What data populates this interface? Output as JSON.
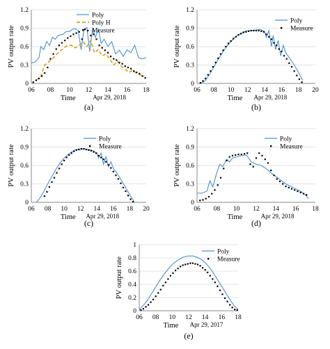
{
  "chart_data": [
    {
      "panel": "(a)",
      "type": "line",
      "ylabel": "PV output rate",
      "xlabel": "Time",
      "date_label": "Apr 29, 2018",
      "xlim": [
        6,
        18
      ],
      "ylim": [
        0,
        1.2
      ],
      "xticks": [
        "06",
        "08",
        "10",
        "12",
        "14",
        "16",
        "18"
      ],
      "yticks": [
        "0",
        "0.3",
        "0.6",
        "0.9",
        "1.2"
      ],
      "legend": [
        "Poly",
        "Poly H",
        "Measure"
      ],
      "series": [
        {
          "name": "Poly",
          "style": "solid",
          "color": "#4a90d9",
          "x": [
            6,
            6.4,
            6.8,
            7,
            7.3,
            7.6,
            7.9,
            8.2,
            8.5,
            8.8,
            9.0,
            9.3,
            9.6,
            10,
            10.3,
            10.6,
            10.9,
            11.2,
            11.5,
            11.8,
            12.1,
            12.4,
            12.7,
            13.0,
            13.3,
            13.6,
            14.0,
            14.4,
            14.8,
            15.2,
            15.6,
            16.0,
            16.4,
            16.8,
            17.2,
            17.6,
            18
          ],
          "y": [
            0.33,
            0.35,
            0.42,
            0.6,
            0.55,
            0.68,
            0.62,
            0.75,
            0.72,
            0.78,
            0.79,
            0.8,
            0.84,
            0.85,
            0.88,
            0.89,
            0.86,
            0.55,
            0.88,
            0.91,
            0.52,
            0.89,
            0.75,
            0.88,
            0.65,
            0.72,
            0.6,
            0.68,
            0.48,
            0.54,
            0.44,
            0.55,
            0.5,
            0.62,
            0.42,
            0.4,
            0.42
          ]
        },
        {
          "name": "Poly H",
          "style": "dashed",
          "color": "#d4a017",
          "x": [
            6.5,
            7,
            7.4,
            7.8,
            8.2,
            8.6,
            9.0,
            9.4,
            9.8,
            10.2,
            10.6,
            11.0,
            11.4,
            11.8,
            12.2,
            12.6,
            13.0,
            13.4,
            13.8,
            14.2,
            14.6,
            15.0,
            15.4,
            15.8,
            16.2,
            16.6,
            17.0,
            17.4,
            17.8
          ],
          "y": [
            0.05,
            0.12,
            0.3,
            0.35,
            0.4,
            0.47,
            0.52,
            0.58,
            0.62,
            0.62,
            0.58,
            0.62,
            0.68,
            0.6,
            0.7,
            0.5,
            0.55,
            0.45,
            0.48,
            0.4,
            0.3,
            0.36,
            0.28,
            0.23,
            0.18,
            0.22,
            0.16,
            0.14,
            0.12
          ]
        },
        {
          "name": "Measure",
          "style": "dots",
          "color": "#000000",
          "x": [
            6.2,
            6.5,
            6.8,
            7.1,
            7.4,
            7.7,
            8.0,
            8.3,
            8.6,
            8.9,
            9.2,
            9.5,
            9.8,
            10.1,
            10.4,
            10.7,
            11.0,
            11.3,
            11.6,
            11.9,
            12.2,
            12.5,
            12.8,
            13.1,
            13.4,
            13.7,
            14.0,
            14.3,
            14.6,
            14.9,
            15.2,
            15.5,
            15.8,
            16.1,
            16.4,
            16.7,
            17.0,
            17.3,
            17.6,
            17.9
          ],
          "y": [
            0.02,
            0.05,
            0.08,
            0.12,
            0.17,
            0.26,
            0.4,
            0.48,
            0.56,
            0.62,
            0.66,
            0.7,
            0.74,
            0.77,
            0.8,
            0.82,
            0.84,
            0.72,
            0.88,
            0.86,
            0.78,
            0.8,
            0.72,
            0.62,
            0.58,
            0.54,
            0.5,
            0.44,
            0.4,
            0.38,
            0.34,
            0.32,
            0.28,
            0.26,
            0.24,
            0.2,
            0.18,
            0.16,
            0.12,
            0.09
          ]
        }
      ]
    },
    {
      "panel": "(b)",
      "type": "line",
      "ylabel": "PV output rate",
      "xlabel": "Time",
      "date_label": "Apr 29, 2018",
      "xlim": [
        6,
        20
      ],
      "ylim": [
        0,
        1.2
      ],
      "xticks": [
        "06",
        "08",
        "10",
        "12",
        "14",
        "16",
        "18",
        "20"
      ],
      "yticks": [
        "0",
        "0.3",
        "0.6",
        "0.9",
        "1.2"
      ],
      "legend": [
        "Poly",
        "Measure"
      ],
      "series": [
        {
          "name": "Poly",
          "style": "solid",
          "color": "#4a90d9",
          "x": [
            6.5,
            7,
            7.5,
            8,
            8.5,
            9,
            9.5,
            10,
            10.5,
            11,
            11.5,
            12,
            12.5,
            13,
            13.5,
            14,
            14.2,
            14.5,
            14.8,
            15,
            15.3,
            15.6,
            15.9,
            16.2,
            16.5,
            17,
            17.5,
            18,
            18.5
          ],
          "y": [
            0.0,
            0.05,
            0.15,
            0.27,
            0.39,
            0.5,
            0.6,
            0.68,
            0.75,
            0.8,
            0.84,
            0.86,
            0.86,
            0.87,
            0.88,
            0.84,
            0.75,
            0.86,
            0.6,
            0.78,
            0.55,
            0.7,
            0.45,
            0.62,
            0.5,
            0.4,
            0.3,
            0.18,
            0.05
          ]
        },
        {
          "name": "Measure",
          "style": "dots",
          "color": "#000000",
          "x": [
            6.4,
            6.7,
            7.0,
            7.3,
            7.6,
            7.9,
            8.2,
            8.5,
            8.8,
            9.1,
            9.4,
            9.7,
            10.0,
            10.3,
            10.6,
            10.9,
            11.2,
            11.5,
            11.8,
            12.1,
            12.4,
            12.7,
            13.0,
            13.3,
            13.6,
            13.9,
            14.2,
            14.5,
            14.8,
            15.1,
            15.4,
            15.7,
            16.0,
            16.3,
            16.6,
            16.9,
            17.2,
            17.5,
            17.8,
            18.1,
            18.4
          ],
          "y": [
            0.01,
            0.04,
            0.08,
            0.14,
            0.2,
            0.27,
            0.34,
            0.41,
            0.48,
            0.54,
            0.6,
            0.65,
            0.69,
            0.73,
            0.76,
            0.79,
            0.81,
            0.83,
            0.84,
            0.85,
            0.86,
            0.86,
            0.86,
            0.86,
            0.85,
            0.84,
            0.8,
            0.76,
            0.72,
            0.66,
            0.62,
            0.56,
            0.52,
            0.45,
            0.4,
            0.33,
            0.27,
            0.2,
            0.13,
            0.07,
            0.02
          ]
        }
      ]
    },
    {
      "panel": "(c)",
      "type": "line",
      "ylabel": "PV output rate",
      "xlabel": "Time",
      "date_label": "Apr 29, 2018",
      "xlim": [
        6,
        20
      ],
      "ylim": [
        0,
        1.2
      ],
      "xticks": [
        "06",
        "08",
        "10",
        "12",
        "14",
        "16",
        "18",
        "20"
      ],
      "yticks": [
        "0",
        "0.3",
        "0.6",
        "0.9",
        "1.2"
      ],
      "legend": [
        "Poly",
        "Measure"
      ],
      "series": [
        {
          "name": "Poly",
          "style": "solid",
          "color": "#4a90d9",
          "x": [
            6.6,
            7,
            7.5,
            8,
            8.5,
            9,
            9.5,
            10,
            10.5,
            11,
            11.5,
            12,
            12.5,
            13,
            13.5,
            14,
            14.2,
            14.5,
            14.8,
            15.1,
            15.4,
            15.7,
            16.0,
            16.3,
            16.6,
            17,
            17.5,
            18,
            18.5
          ],
          "y": [
            0.0,
            0.06,
            0.17,
            0.3,
            0.42,
            0.54,
            0.64,
            0.72,
            0.78,
            0.83,
            0.86,
            0.87,
            0.87,
            0.86,
            0.84,
            0.8,
            0.72,
            0.8,
            0.62,
            0.74,
            0.58,
            0.66,
            0.55,
            0.5,
            0.44,
            0.35,
            0.24,
            0.12,
            0.02
          ]
        },
        {
          "name": "Measure",
          "style": "dots",
          "color": "#000000",
          "x": [
            7.6,
            7.9,
            8.2,
            8.5,
            8.8,
            9.1,
            9.4,
            9.7,
            10.0,
            10.3,
            10.6,
            10.9,
            11.2,
            11.5,
            11.8,
            12.1,
            12.4,
            12.7,
            13.0,
            13.3,
            13.6,
            13.9,
            14.2,
            14.5,
            14.8,
            15.1,
            15.4,
            15.7,
            16.0,
            16.3,
            16.6,
            16.9,
            17.2,
            17.5,
            17.8,
            18.1,
            18.4
          ],
          "y": [
            0.1,
            0.17,
            0.25,
            0.33,
            0.4,
            0.48,
            0.55,
            0.62,
            0.68,
            0.73,
            0.77,
            0.8,
            0.83,
            0.85,
            0.86,
            0.87,
            0.87,
            0.86,
            0.85,
            0.84,
            0.82,
            0.8,
            0.76,
            0.73,
            0.7,
            0.66,
            0.61,
            0.56,
            0.5,
            0.44,
            0.38,
            0.31,
            0.24,
            0.18,
            0.11,
            0.05,
            0.01
          ]
        }
      ]
    },
    {
      "panel": "(d)",
      "type": "line",
      "ylabel": "PV output rate",
      "xlabel": "Time",
      "date_label": "Apr 29, 2018",
      "xlim": [
        6,
        18
      ],
      "ylim": [
        0,
        1.2
      ],
      "xticks": [
        "06",
        "08",
        "10",
        "12",
        "14",
        "16",
        "18"
      ],
      "yticks": [
        "0",
        "0.3",
        "0.6",
        "0.9",
        "1.2"
      ],
      "legend": [
        "Poly",
        "Measure"
      ],
      "series": [
        {
          "name": "Poly",
          "style": "solid",
          "color": "#4a90d9",
          "x": [
            6,
            6.5,
            7,
            7.3,
            7.6,
            8.0,
            8.3,
            8.6,
            9.0,
            9.3,
            9.6,
            10,
            10.5,
            11,
            11.5,
            12,
            12.5,
            13,
            13.5,
            14,
            14.5,
            15,
            15.5,
            16,
            16.5,
            17,
            17.3
          ],
          "y": [
            0.15,
            0.15,
            0.18,
            0.35,
            0.25,
            0.48,
            0.62,
            0.58,
            0.7,
            0.66,
            0.72,
            0.74,
            0.76,
            0.77,
            0.66,
            0.62,
            0.6,
            0.55,
            0.48,
            0.42,
            0.36,
            0.3,
            0.26,
            0.22,
            0.18,
            0.12,
            0.06
          ]
        },
        {
          "name": "Measure",
          "style": "dots",
          "color": "#000000",
          "x": [
            6.3,
            6.6,
            6.9,
            7.2,
            7.5,
            7.8,
            8.1,
            8.4,
            8.7,
            9.0,
            9.3,
            9.6,
            9.9,
            10.2,
            10.5,
            10.8,
            11.1,
            11.4,
            11.7,
            12.0,
            12.3,
            12.6,
            12.9,
            13.2,
            13.5,
            13.8,
            14.1,
            14.4,
            14.7,
            15.0,
            15.3,
            15.6,
            15.9,
            16.2,
            16.5,
            16.8,
            17.1
          ],
          "y": [
            0.03,
            0.04,
            0.06,
            0.09,
            0.14,
            0.2,
            0.28,
            0.4,
            0.55,
            0.68,
            0.74,
            0.76,
            0.77,
            0.78,
            0.78,
            0.79,
            0.8,
            0.62,
            0.58,
            0.72,
            0.8,
            0.76,
            0.7,
            0.64,
            0.52,
            0.44,
            0.38,
            0.34,
            0.3,
            0.26,
            0.24,
            0.22,
            0.2,
            0.18,
            0.16,
            0.14,
            0.12
          ]
        }
      ]
    },
    {
      "panel": "(e)",
      "type": "line",
      "ylabel": "PV output rate",
      "xlabel": "Time",
      "date_label": "Apr 29, 2017",
      "xlim": [
        6,
        18
      ],
      "ylim": [
        0,
        1.0
      ],
      "xticks": [
        "06",
        "08",
        "10",
        "12",
        "14",
        "16",
        "18"
      ],
      "yticks": [
        "0",
        "0.2",
        "0.4",
        "0.6",
        "0.8",
        "1"
      ],
      "legend": [
        "Poly",
        "Measure"
      ],
      "series": [
        {
          "name": "Poly",
          "style": "solid",
          "color": "#4a90d9",
          "x": [
            6,
            6.5,
            7,
            7.5,
            8,
            8.5,
            9,
            9.5,
            10,
            10.5,
            11,
            11.5,
            12,
            12.5,
            13,
            13.5,
            14,
            14.5,
            15,
            15.5,
            16,
            16.5,
            17,
            17.5,
            18
          ],
          "y": [
            0.02,
            0.08,
            0.16,
            0.26,
            0.36,
            0.46,
            0.55,
            0.63,
            0.7,
            0.75,
            0.79,
            0.82,
            0.83,
            0.83,
            0.81,
            0.78,
            0.73,
            0.66,
            0.57,
            0.47,
            0.37,
            0.27,
            0.17,
            0.08,
            0.02
          ]
        },
        {
          "name": "Measure",
          "style": "dots",
          "color": "#000000",
          "x": [
            6.2,
            6.5,
            6.8,
            7.1,
            7.4,
            7.7,
            8.0,
            8.3,
            8.6,
            8.9,
            9.2,
            9.5,
            9.8,
            10.1,
            10.4,
            10.7,
            11.0,
            11.3,
            11.6,
            11.9,
            12.2,
            12.5,
            12.8,
            13.1,
            13.4,
            13.7,
            14.0,
            14.3,
            14.6,
            14.9,
            15.2,
            15.5,
            15.8,
            16.1,
            16.4,
            16.7,
            17.0,
            17.3,
            17.6,
            17.9
          ],
          "y": [
            0.01,
            0.03,
            0.06,
            0.09,
            0.13,
            0.17,
            0.22,
            0.27,
            0.32,
            0.38,
            0.43,
            0.48,
            0.53,
            0.57,
            0.61,
            0.64,
            0.67,
            0.69,
            0.7,
            0.71,
            0.72,
            0.72,
            0.71,
            0.7,
            0.68,
            0.65,
            0.62,
            0.58,
            0.53,
            0.48,
            0.43,
            0.37,
            0.31,
            0.25,
            0.19,
            0.14,
            0.09,
            0.05,
            0.02,
            0.01
          ]
        }
      ]
    }
  ]
}
